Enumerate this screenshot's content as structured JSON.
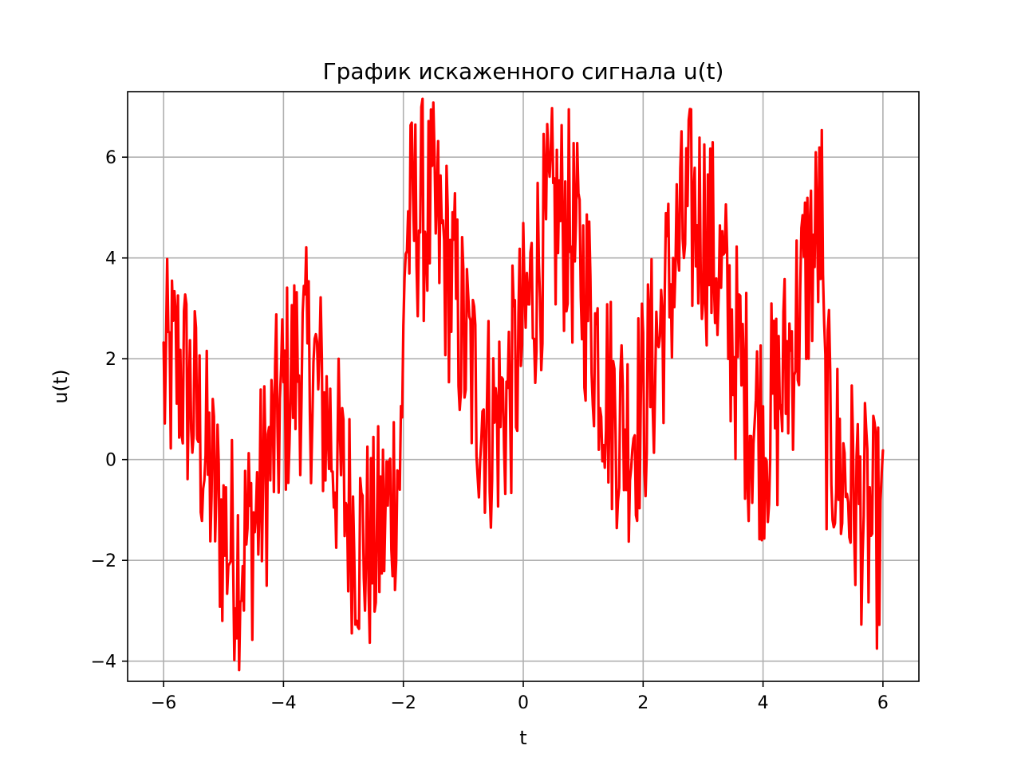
{
  "chart_data": {
    "type": "line",
    "title": "График искаженного сигнала u(t)",
    "xlabel": "t",
    "ylabel": "u(t)",
    "xlim": [
      -6.6,
      6.6
    ],
    "ylim": [
      -4.4,
      7.3
    ],
    "xticks": [
      -6,
      -4,
      -2,
      0,
      2,
      4,
      6
    ],
    "yticks": [
      -4,
      -2,
      0,
      2,
      4,
      6
    ],
    "xtick_labels": [
      "−6",
      "−4",
      "−2",
      "0",
      "2",
      "4",
      "6"
    ],
    "ytick_labels": [
      "−4",
      "−2",
      "0",
      "2",
      "4",
      "6"
    ],
    "grid": true,
    "series": [
      {
        "color": "#ff0000",
        "x": [
          -6.0,
          -5.75,
          -5.5,
          -5.25,
          -5.0,
          -4.75,
          -4.5,
          -4.25,
          -4.0,
          -3.75,
          -3.5,
          -3.25,
          -3.0,
          -2.75,
          -2.5,
          -2.25,
          -2.01,
          -1.99,
          -1.75,
          -1.5,
          -1.25,
          -1.0,
          -0.75,
          -0.5,
          -0.25,
          0.0,
          0.25,
          0.5,
          0.75,
          1.0,
          1.25,
          1.5,
          1.75,
          2.0,
          2.25,
          2.5,
          2.75,
          3.0,
          3.25,
          3.5,
          3.75,
          4.0,
          4.25,
          4.5,
          4.75,
          4.99,
          5.01,
          5.25,
          5.5,
          5.75,
          6.0
        ],
        "y": [
          1.6,
          1.9,
          1.1,
          -0.2,
          -1.4,
          -1.9,
          -1.3,
          -0.1,
          1.2,
          2.0,
          1.8,
          0.7,
          -0.6,
          -1.6,
          -1.8,
          -1.0,
          0.3,
          4.3,
          5.0,
          4.8,
          3.8,
          2.4,
          1.2,
          0.7,
          1.2,
          2.5,
          3.9,
          4.8,
          4.7,
          3.6,
          2.2,
          1.0,
          0.6,
          1.1,
          2.4,
          3.8,
          4.8,
          4.8,
          3.8,
          2.4,
          1.1,
          0.6,
          1.1,
          2.4,
          3.8,
          4.7,
          1.1,
          -0.1,
          -0.6,
          -1.3,
          -1.6
        ],
        "noise_amplitude": 3.0
      }
    ]
  }
}
